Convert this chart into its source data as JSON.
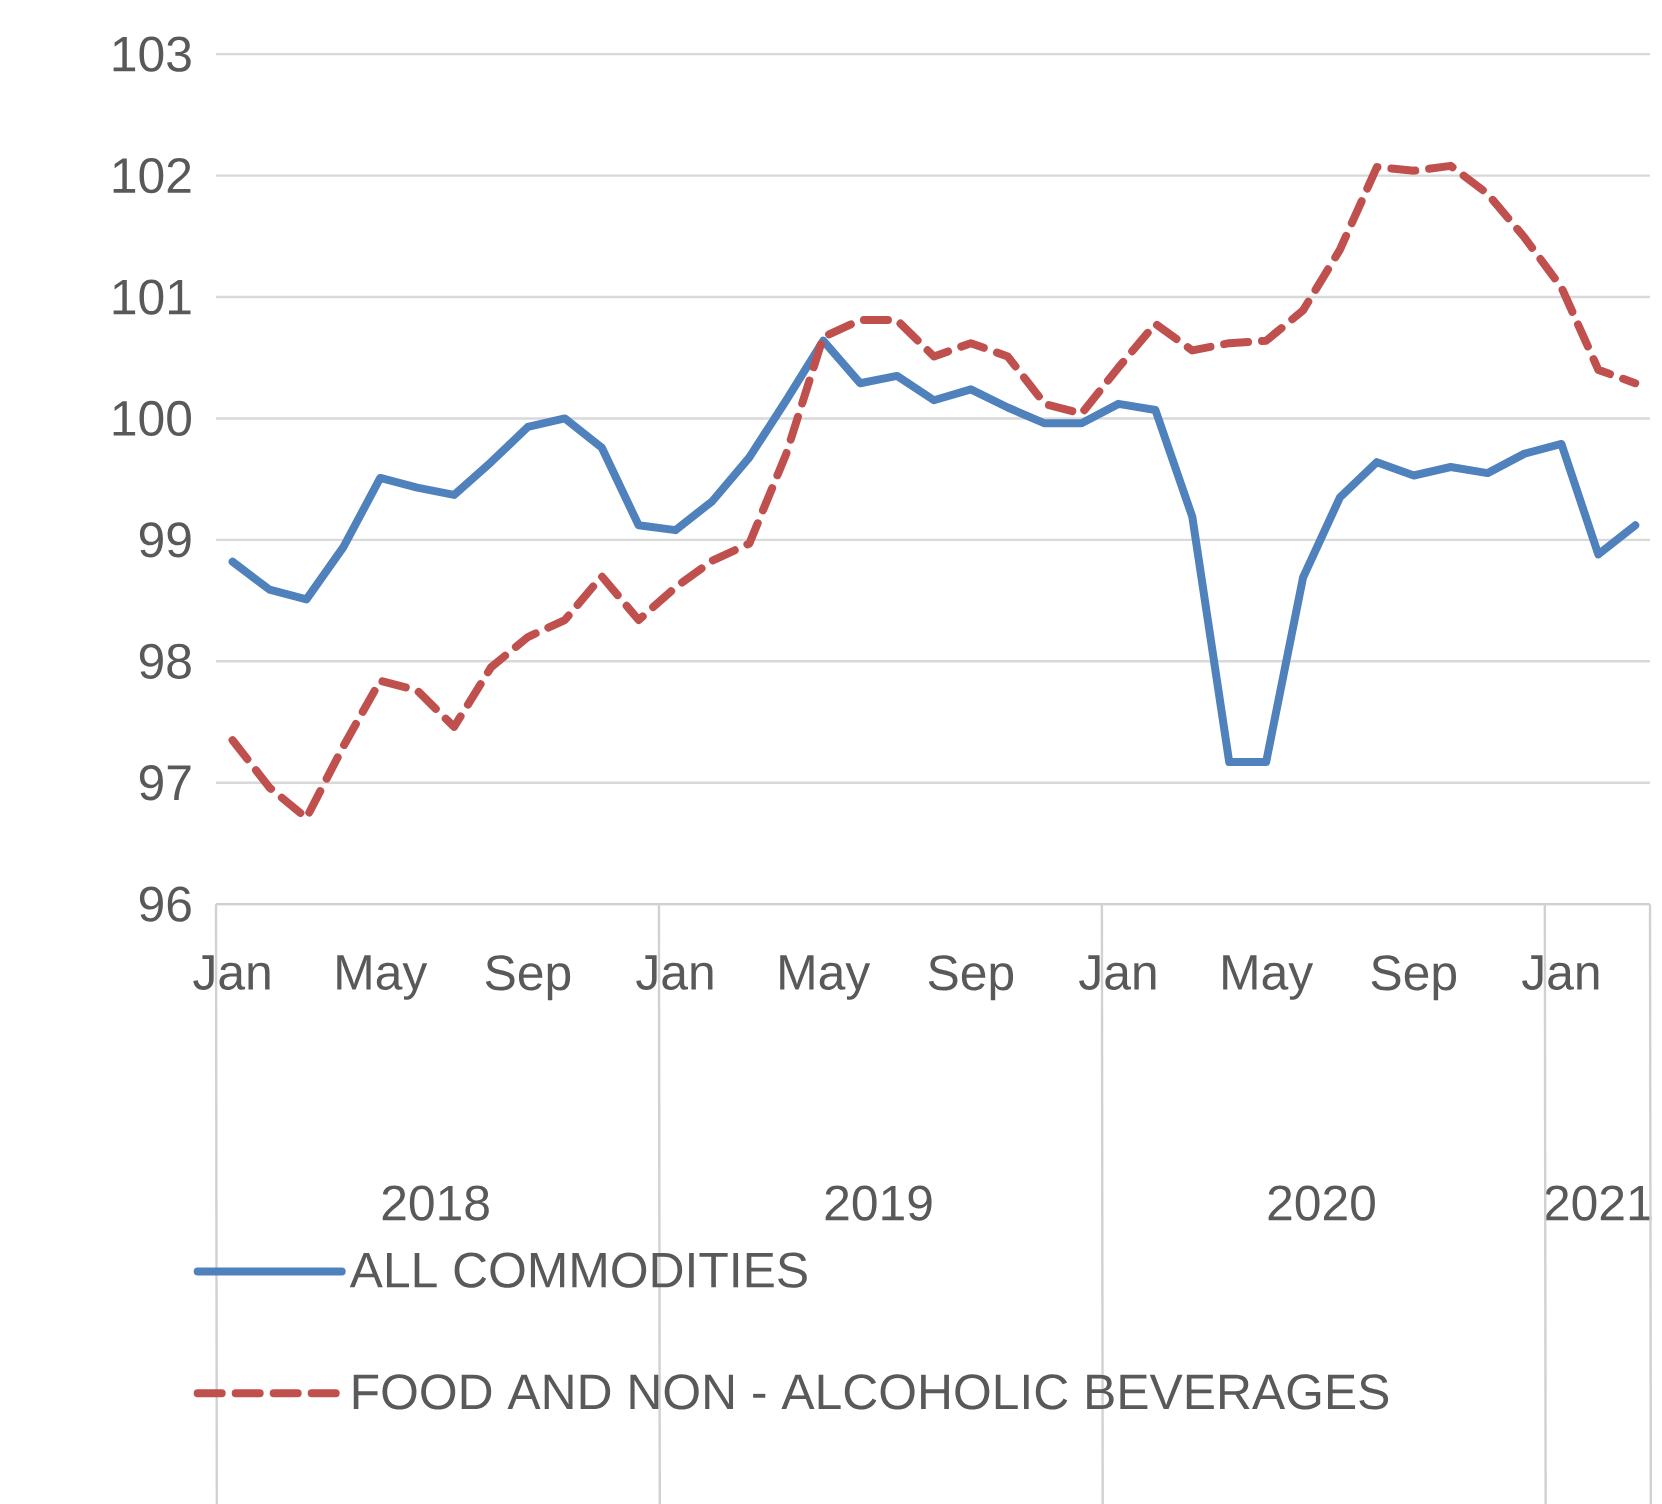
{
  "chart_data": {
    "type": "line",
    "categories": [
      "Jan",
      null,
      null,
      null,
      "May",
      null,
      null,
      null,
      "Sep",
      null,
      null,
      null,
      "Jan",
      null,
      null,
      null,
      "May",
      null,
      null,
      null,
      "Sep",
      null,
      null,
      null,
      "Jan",
      null,
      null,
      null,
      "May",
      null,
      null,
      null,
      "Sep",
      null,
      null,
      null,
      "Jan",
      null,
      null
    ],
    "series": [
      {
        "name": "ALL COMMODITIES",
        "color": "#4f81bd",
        "line_style": "solid",
        "values": [
          98.82,
          98.59,
          98.51,
          98.94,
          99.51,
          99.43,
          99.37,
          99.64,
          99.93,
          100.0,
          99.76,
          99.12,
          99.08,
          99.32,
          99.68,
          100.15,
          100.64,
          100.29,
          100.35,
          100.15,
          100.24,
          100.09,
          99.96,
          99.96,
          100.12,
          100.07,
          99.19,
          97.17,
          97.17,
          98.69,
          99.35,
          99.64,
          99.53,
          99.6,
          99.55,
          99.71,
          99.79,
          98.88,
          99.12
        ]
      },
      {
        "name": "FOOD AND NON - ALCOHOLIC BEVERAGES",
        "color": "#c0504d",
        "line_style": "dashed",
        "values": [
          97.35,
          96.96,
          96.71,
          97.3,
          97.84,
          97.76,
          97.46,
          97.95,
          98.2,
          98.34,
          98.7,
          98.34,
          98.61,
          98.83,
          98.97,
          99.71,
          100.67,
          100.81,
          100.81,
          100.51,
          100.62,
          100.51,
          100.12,
          100.04,
          100.42,
          100.78,
          100.56,
          100.62,
          100.64,
          100.89,
          101.39,
          102.07,
          102.04,
          102.08,
          101.85,
          101.49,
          101.08,
          100.4,
          100.29
        ]
      }
    ],
    "annotations": [
      "2018",
      "2019",
      "2020",
      "2021"
    ],
    "ylim": [
      96,
      103
    ],
    "yticks": [
      96,
      97,
      98,
      99,
      100,
      101,
      102,
      103
    ],
    "grid": "y",
    "legend": "bottom",
    "marker": "none"
  }
}
